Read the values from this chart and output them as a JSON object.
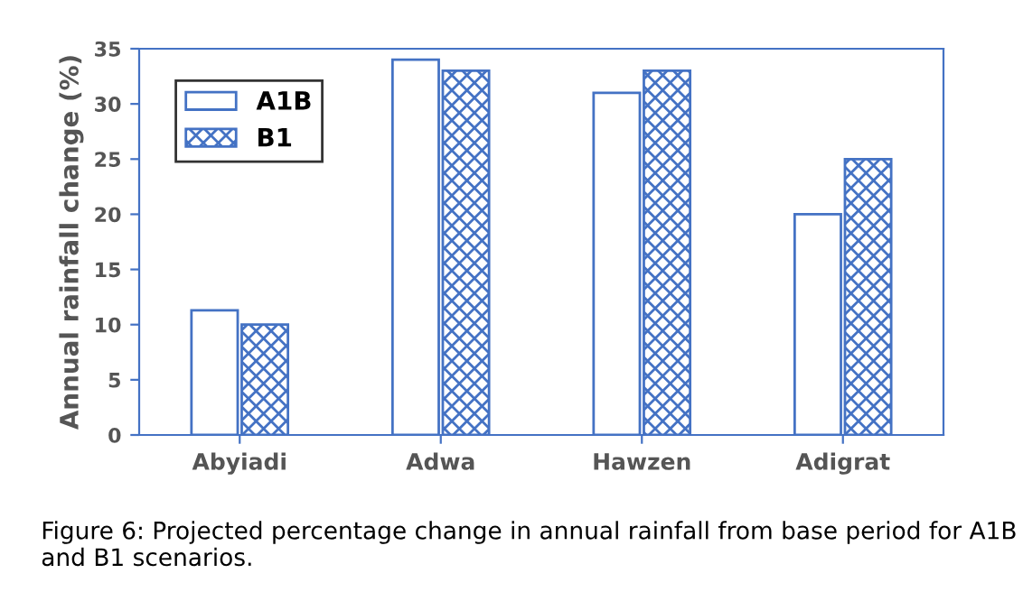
{
  "chart_data": {
    "type": "bar",
    "ylabel": "Annual rainfall change (%)",
    "categories": [
      "Abyiadi",
      "Adwa",
      "Hawzen",
      "Adigrat"
    ],
    "series": [
      {
        "name": "A1B",
        "color": "#4472c4",
        "values": [
          11.3,
          34,
          31,
          20
        ]
      },
      {
        "name": "B1",
        "color": "#4472c4",
        "values": [
          10,
          33,
          33,
          25
        ]
      }
    ],
    "ylim": [
      0,
      35
    ],
    "yticks": [
      0,
      5,
      10,
      15,
      20,
      25,
      30,
      35
    ],
    "grid": false,
    "legend": "top left",
    "annotations": [
      "Figure 6: Projected percentage change in annual rainfall from base period for A1B and B1 scenarios."
    ]
  }
}
